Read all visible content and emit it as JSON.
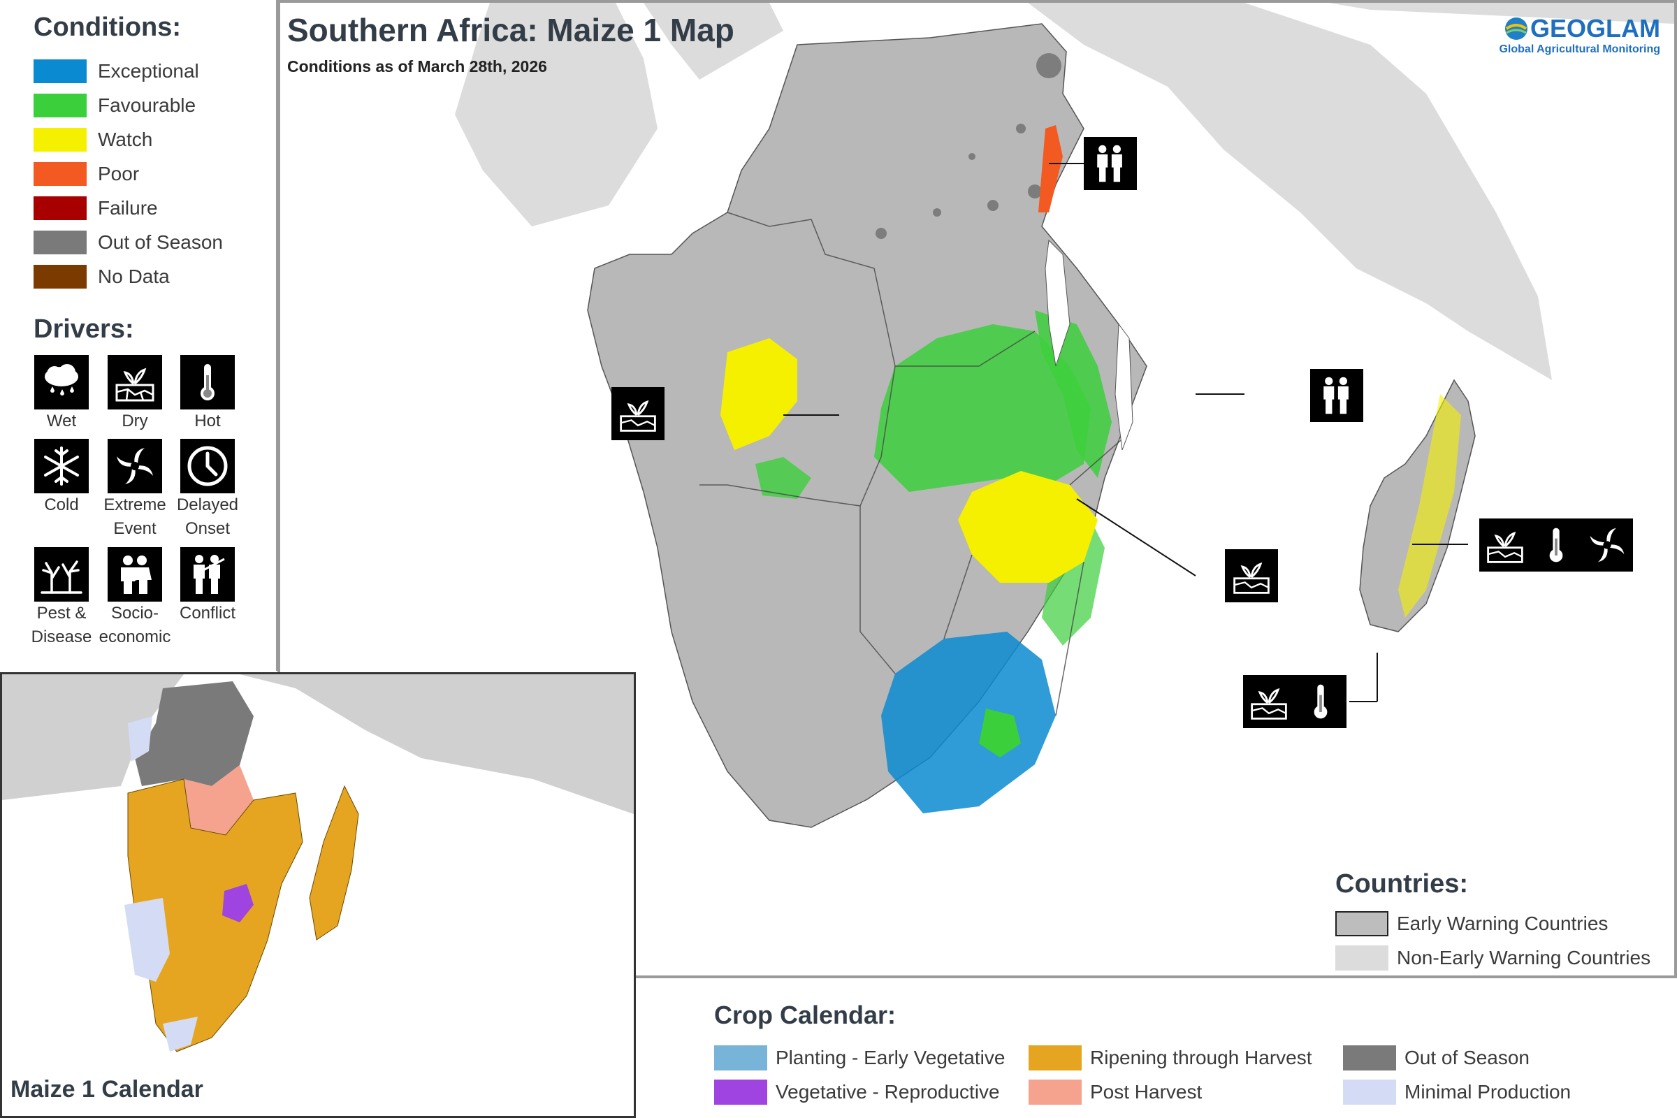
{
  "conditions": {
    "title": "Conditions:",
    "items": [
      {
        "label": "Exceptional",
        "color": "#0a8ad0"
      },
      {
        "label": "Favourable",
        "color": "#3ccf3c"
      },
      {
        "label": "Watch",
        "color": "#f5f000"
      },
      {
        "label": "Poor",
        "color": "#f25a22"
      },
      {
        "label": "Failure",
        "color": "#a80000"
      },
      {
        "label": "Out of Season",
        "color": "#7a7a7a"
      },
      {
        "label": "No Data",
        "color": "#7b3b00"
      }
    ]
  },
  "drivers": {
    "title": "Drivers:",
    "items": [
      {
        "label": "Wet",
        "icon": "wet-icon"
      },
      {
        "label": "Dry",
        "icon": "dry-icon"
      },
      {
        "label": "Hot",
        "icon": "hot-icon"
      },
      {
        "label": "Cold",
        "icon": "cold-icon"
      },
      {
        "label": "Extreme Event",
        "icon": "extreme-event-icon"
      },
      {
        "label": "Delayed Onset",
        "icon": "delayed-onset-icon"
      },
      {
        "label": "Pest & Disease",
        "icon": "pest-disease-icon"
      },
      {
        "label": "Socio-economic",
        "icon": "socio-economic-icon"
      },
      {
        "label": "Conflict",
        "icon": "conflict-icon"
      }
    ]
  },
  "main_map": {
    "title": "Southern Africa: Maize 1 Map",
    "subtitle": "Conditions as of March 28th, 2026",
    "logo_name": "GEOGLAM",
    "logo_sub": "Global Agricultural Monitoring",
    "ocean_color": "#ffffff",
    "ew_color": "#b8b8b8",
    "non_ew_color": "#dcdcdc"
  },
  "countries_legend": {
    "title": "Countries:",
    "items": [
      {
        "label": "Early Warning Countries",
        "color": "#bdbdbd"
      },
      {
        "label": "Non-Early Warning Countries",
        "color": "#dcdcdc"
      }
    ]
  },
  "inset": {
    "title": "Maize 1 Calendar"
  },
  "crop_calendar": {
    "title": "Crop Calendar:",
    "items": [
      {
        "label": "Planting - Early Vegetative",
        "color": "#78b4d8"
      },
      {
        "label": "Ripening through Harvest",
        "color": "#e6a520"
      },
      {
        "label": "Out of Season",
        "color": "#7a7a7a"
      },
      {
        "label": "Vegetative - Reproductive",
        "color": "#9f44e0"
      },
      {
        "label": "Post Harvest",
        "color": "#f5a38e"
      },
      {
        "label": "Minimal Production",
        "color": "#d4dcf5"
      }
    ]
  }
}
